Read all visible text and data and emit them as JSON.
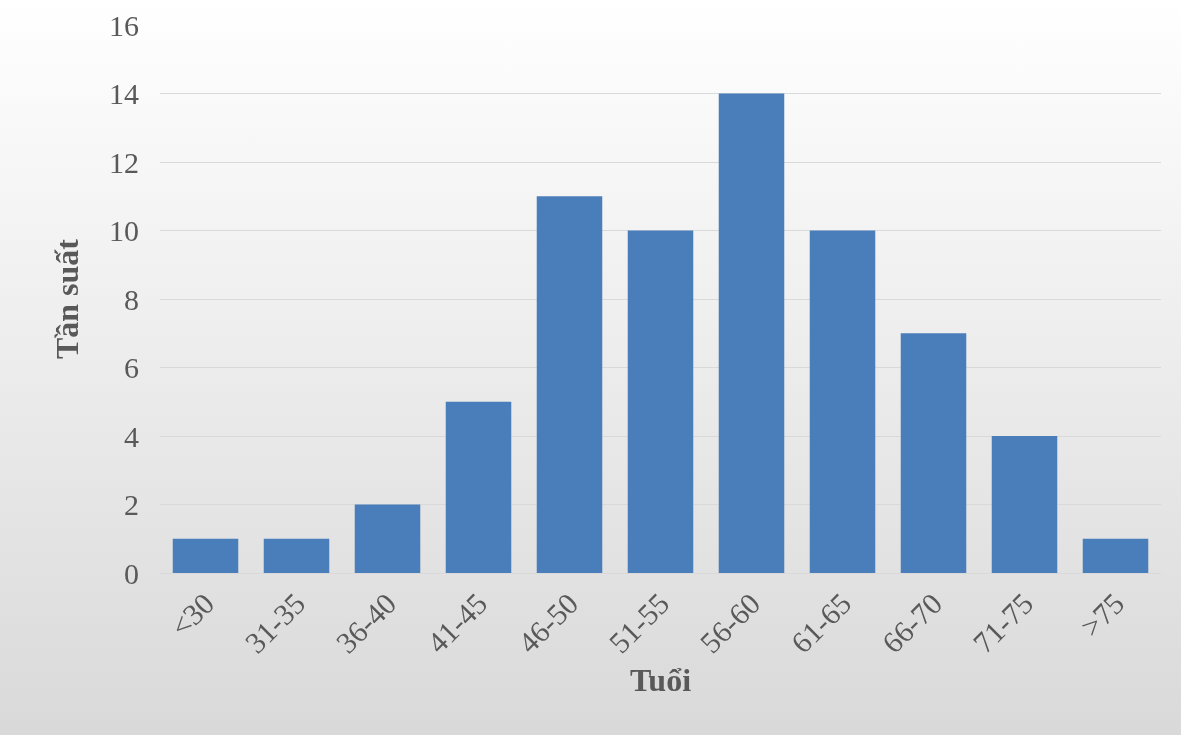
{
  "chart_data": {
    "type": "bar",
    "xlabel": "Tuổi",
    "ylabel": "Tần suất",
    "categories": [
      "<30",
      "31-35",
      "36-40",
      "41-45",
      "46-50",
      "51-55",
      "56-60",
      "61-65",
      "66-70",
      "71-75",
      ">75"
    ],
    "values": [
      1,
      1,
      2,
      5,
      11,
      10,
      14,
      10,
      7,
      4,
      1
    ],
    "color": "#4a7ebb",
    "ylim": [
      0,
      16
    ],
    "yticks": [
      0,
      2,
      4,
      6,
      8,
      10,
      12,
      14,
      16
    ],
    "grid": "y",
    "legend": false
  }
}
